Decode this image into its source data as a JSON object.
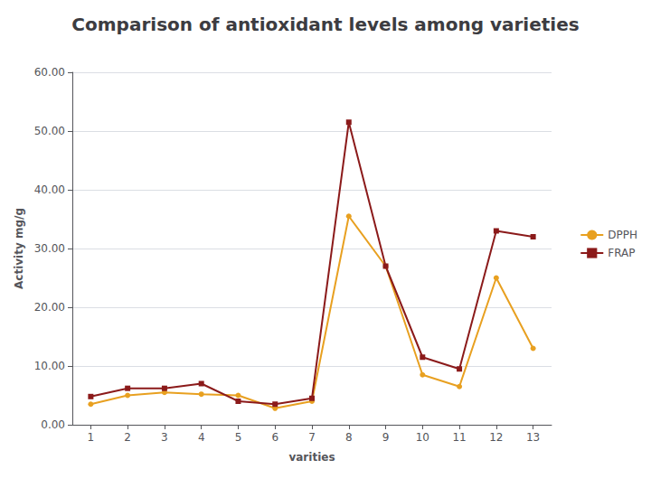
{
  "chart_data": {
    "type": "line",
    "title": "Comparison of antioxidant levels among varieties",
    "xlabel": "varities",
    "ylabel": "Activity mg/g",
    "x": [
      1,
      2,
      3,
      4,
      5,
      6,
      7,
      8,
      9,
      10,
      11,
      12,
      13
    ],
    "series": [
      {
        "name": "DPPH",
        "color": "#E8A020",
        "marker": "circle",
        "values": [
          3.5,
          5.0,
          5.5,
          5.2,
          5.0,
          2.8,
          4.0,
          35.5,
          27.0,
          8.5,
          6.5,
          25.0,
          13.0
        ]
      },
      {
        "name": "FRAP",
        "color": "#8B1A1A",
        "marker": "square",
        "values": [
          4.8,
          6.2,
          6.2,
          7.0,
          4.0,
          3.5,
          4.5,
          51.5,
          27.0,
          11.5,
          9.5,
          33.0,
          32.0
        ]
      }
    ],
    "xlim": [
      0.5,
      13.5
    ],
    "xticks": [
      1,
      2,
      3,
      4,
      5,
      6,
      7,
      8,
      9,
      10,
      11,
      12,
      13
    ],
    "ylim": [
      0,
      60
    ],
    "yticks": [
      {
        "value": 0.0,
        "label": "0.00"
      },
      {
        "value": 10.0,
        "label": "10.00"
      },
      {
        "value": 20.0,
        "label": "20.00"
      },
      {
        "value": 30.0,
        "label": "30.00"
      },
      {
        "value": 40.0,
        "label": "40.00"
      },
      {
        "value": 50.0,
        "label": "50.00"
      },
      {
        "value": 60.0,
        "label": "60.00"
      }
    ],
    "grid": true,
    "legend": "right"
  }
}
